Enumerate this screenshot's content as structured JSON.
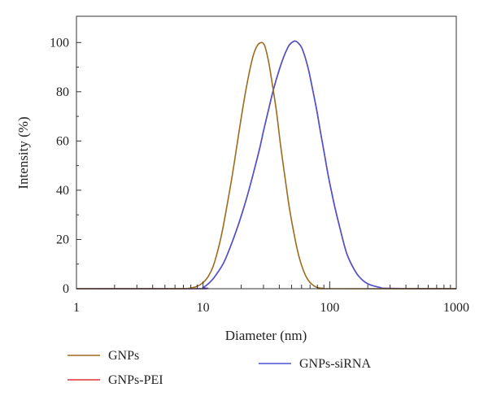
{
  "chart_data": {
    "type": "line",
    "title": "",
    "xlabel": "Diameter (nm)",
    "ylabel": "Intensity (%)",
    "x_scale": "log",
    "xlim": [
      1,
      1000
    ],
    "ylim": [
      0,
      110
    ],
    "x_ticks": [
      "1",
      "10",
      "100",
      "1000"
    ],
    "y_ticks": [
      "0",
      "20",
      "40",
      "60",
      "80",
      "100"
    ],
    "grid": false,
    "legend_position": "bottom",
    "series": [
      {
        "name": "GNPs",
        "color": "#9c6b1e",
        "x": [
          1,
          5,
          7,
          8,
          9,
          10,
          11,
          12,
          13,
          14,
          15,
          17,
          19,
          21,
          23,
          25,
          27,
          29,
          30,
          31,
          33,
          35,
          38,
          41,
          45,
          48,
          52,
          56,
          60,
          65,
          70,
          75,
          80,
          90,
          100,
          1000
        ],
        "y": [
          0,
          0,
          0,
          0.3,
          1,
          2.5,
          5,
          9,
          15,
          22,
          30,
          46,
          62,
          76,
          87,
          95,
          99,
          100,
          99.5,
          98,
          92,
          84,
          72,
          58,
          43,
          33,
          23,
          15,
          9.5,
          5,
          2.5,
          1.2,
          0.5,
          0.1,
          0,
          0
        ]
      },
      {
        "name": "GNPs-PEI",
        "color": "#e0303a",
        "x": [
          1,
          9,
          10,
          11,
          12,
          13,
          14,
          15,
          17,
          19,
          21,
          23,
          25,
          28,
          30,
          33,
          36,
          40,
          44,
          48,
          52,
          54,
          56,
          60,
          64,
          68,
          72,
          76,
          80,
          85,
          90,
          95,
          100,
          110,
          120,
          135,
          150,
          170,
          200,
          250,
          300,
          1000
        ],
        "y": [
          0,
          0,
          0.5,
          2,
          4,
          6.5,
          9,
          12,
          19,
          26,
          33,
          40,
          47,
          57,
          64,
          73,
          81,
          89,
          95,
          99,
          100.5,
          100.5,
          100,
          98,
          94,
          89,
          83,
          77,
          71,
          63,
          56,
          49,
          43,
          33,
          25,
          15,
          9.5,
          5,
          2,
          0.5,
          0.1,
          0
        ]
      },
      {
        "name": "GNPs-siRNA",
        "color": "#4a55d0",
        "x": [
          1,
          9,
          10,
          11,
          12,
          13,
          14,
          15,
          17,
          19,
          21,
          23,
          25,
          28,
          30,
          33,
          36,
          40,
          44,
          48,
          52,
          54,
          56,
          60,
          64,
          68,
          72,
          76,
          80,
          85,
          90,
          95,
          100,
          110,
          120,
          135,
          150,
          170,
          200,
          250,
          300,
          1000
        ],
        "y": [
          0,
          0,
          0.5,
          2,
          4,
          6.5,
          9,
          12,
          19,
          26,
          33,
          40,
          47,
          57,
          64,
          73,
          81,
          89,
          95,
          99,
          100.5,
          100.5,
          100,
          98,
          94,
          89,
          83,
          77,
          71,
          63,
          56,
          49,
          43,
          33,
          25,
          15,
          9.5,
          5,
          2,
          0.5,
          0.1,
          0
        ]
      }
    ]
  }
}
